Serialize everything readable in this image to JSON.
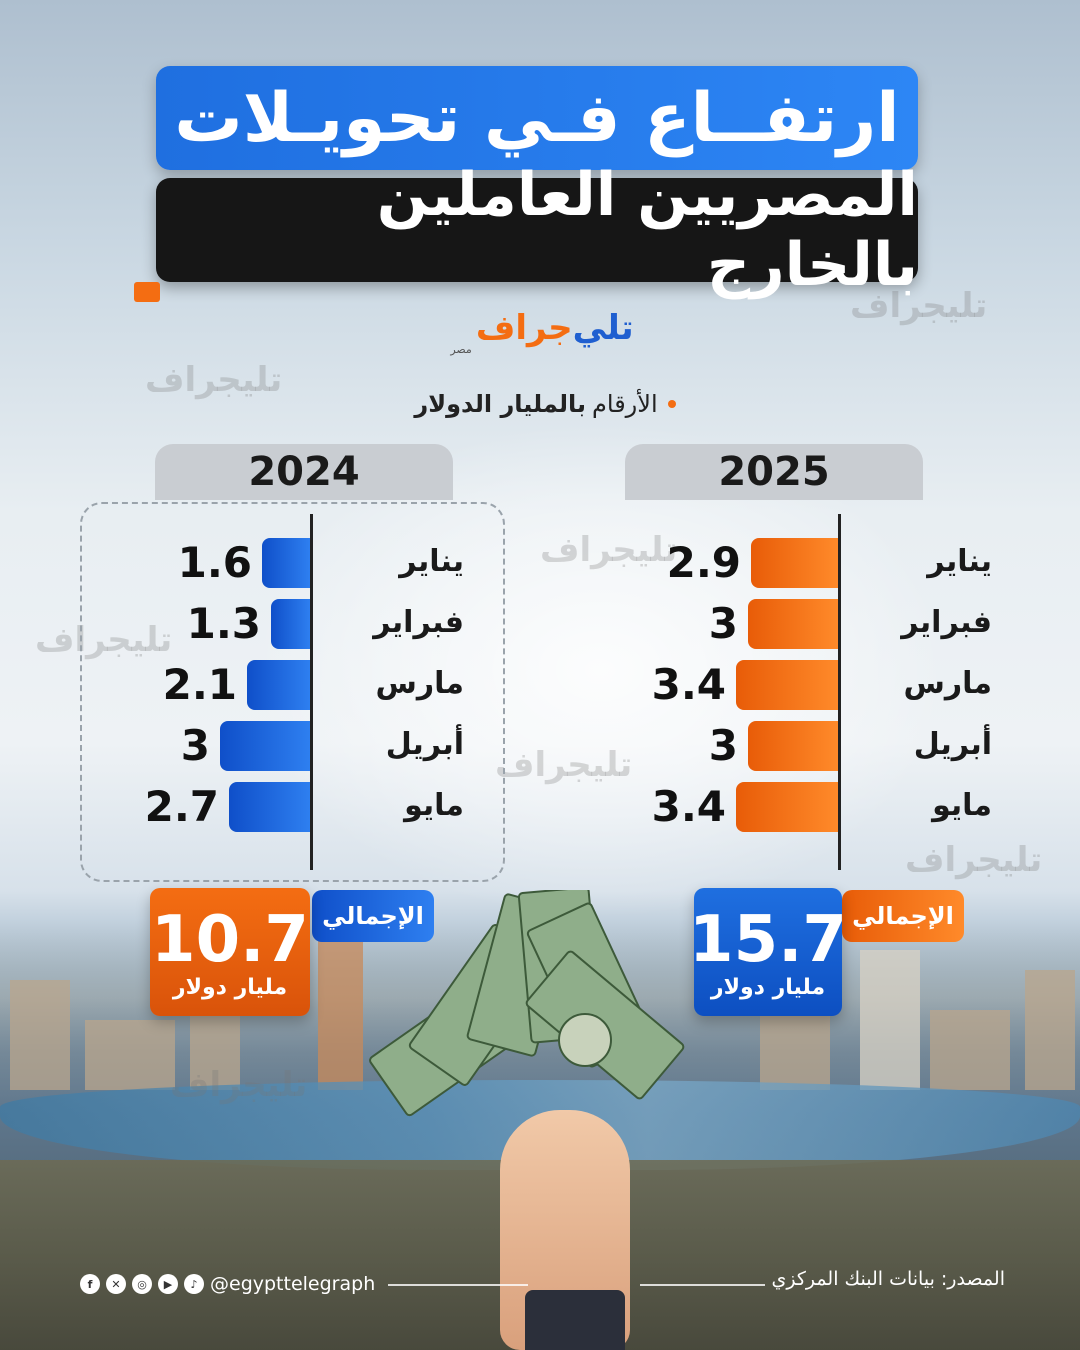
{
  "title": {
    "line1": "ارتفــاع فـي تحويـلات",
    "line2": "المصريين العاملين بالخارج"
  },
  "logo": {
    "part1": "تلي",
    "part2": "جراف",
    "sub": "مصر"
  },
  "watermark_text": "تليجراف",
  "note": {
    "prefix": "الأرقام",
    "bold": "بالمليار الدولار"
  },
  "chart_data": [
    {
      "type": "bar",
      "orientation": "horizontal",
      "title": "2025",
      "categories": [
        "يناير",
        "فبراير",
        "مارس",
        "أبريل",
        "مايو"
      ],
      "values": [
        2.9,
        3,
        3.4,
        3,
        3.4
      ],
      "value_labels": [
        "2.9",
        "3",
        "3.4",
        "3",
        "3.4"
      ],
      "total_label": "الإجمالي",
      "total_value": "15.7",
      "total_unit": "مليار دولار",
      "bar_color": "#f46d12",
      "total_color": "#1f6fe0"
    },
    {
      "type": "bar",
      "orientation": "horizontal",
      "title": "2024",
      "categories": [
        "يناير",
        "فبراير",
        "مارس",
        "أبريل",
        "مايو"
      ],
      "values": [
        1.6,
        1.3,
        2.1,
        3,
        2.7
      ],
      "value_labels": [
        "1.6",
        "1.3",
        "2.1",
        "3",
        "2.7"
      ],
      "total_label": "الإجمالي",
      "total_value": "10.7",
      "total_unit": "مليار دولار",
      "bar_color": "#1f6fe0",
      "total_color": "#f46d12"
    }
  ],
  "footer": {
    "handle": "@egypttelegraph",
    "source": "المصدر: بيانات البنك المركزي",
    "social_icons": [
      "facebook-icon",
      "x-icon",
      "instagram-icon",
      "youtube-icon",
      "tiktok-icon"
    ]
  },
  "colors": {
    "blue": "#1f6fe0",
    "orange": "#f46d12",
    "dark": "#161616"
  }
}
